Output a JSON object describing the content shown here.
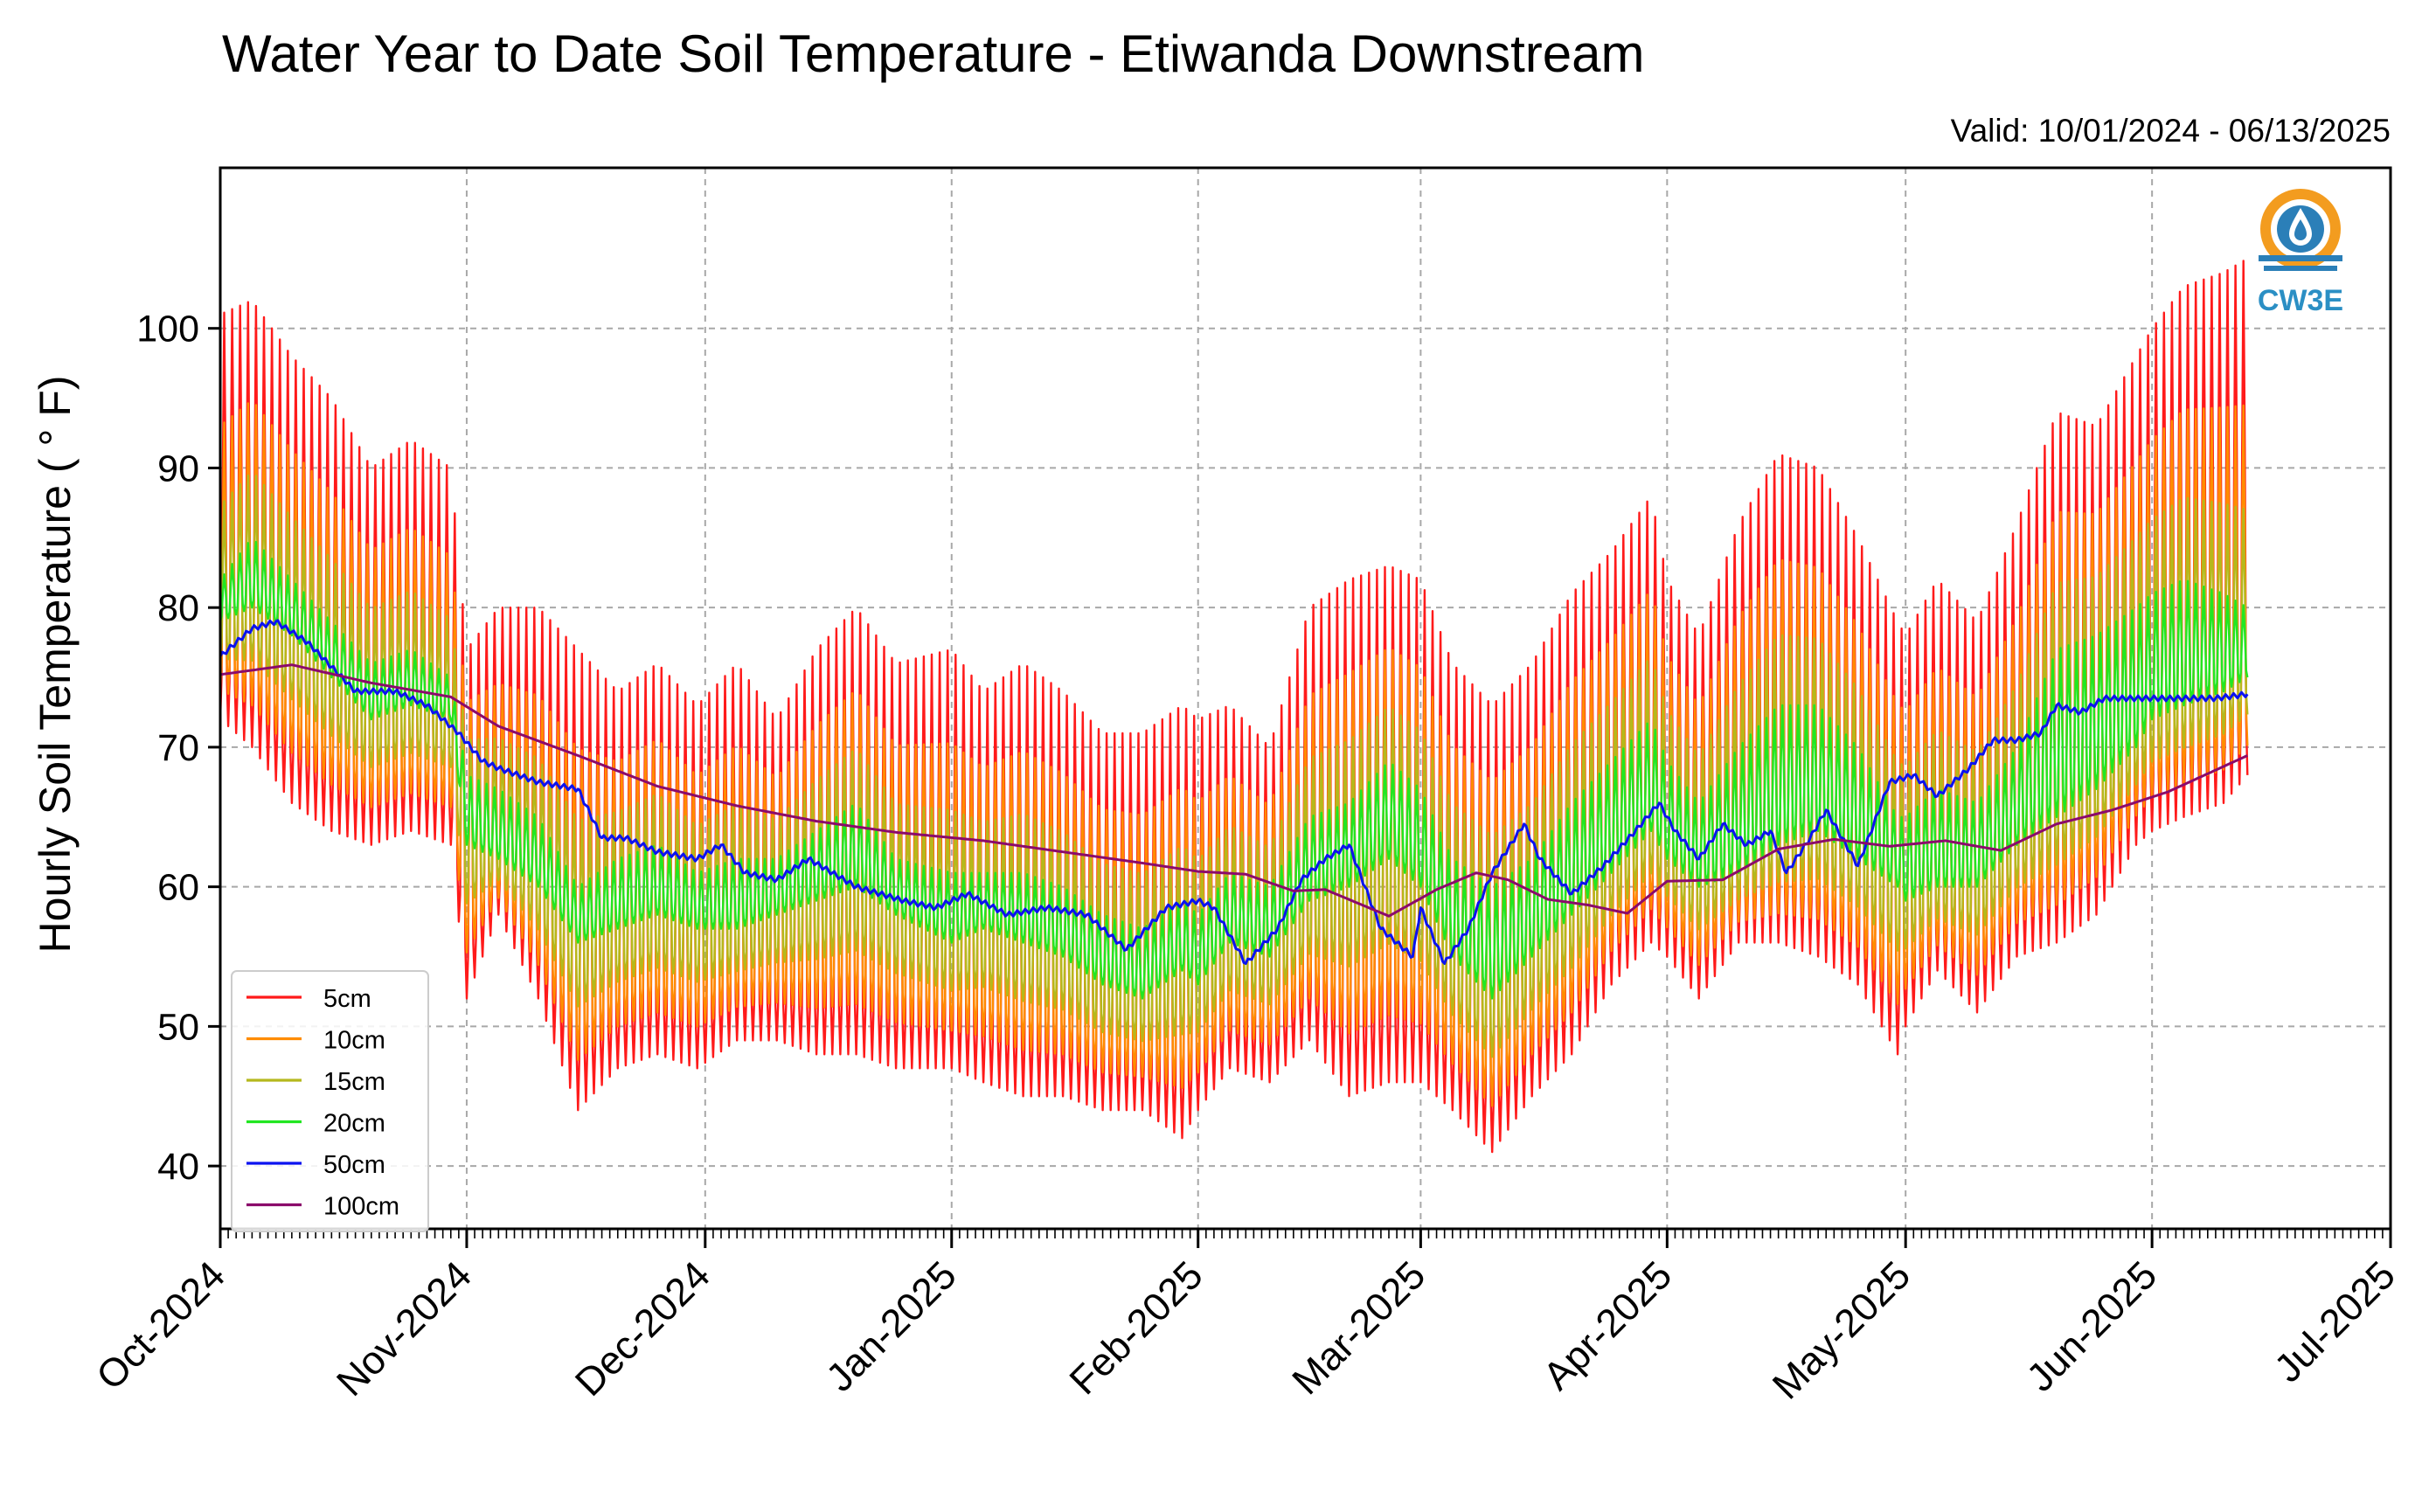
{
  "chart_data": {
    "type": "line",
    "title": "Water Year to Date Soil Temperature - Etiwanda Downstream",
    "subtitle": "Valid: 10/01/2024 - 06/13/2025",
    "ylabel": "Hourly Soil Temperature ( ° F)",
    "xlabel": "",
    "xlim": [
      "2024-10-01",
      "2025-07-01"
    ],
    "ylim": [
      35.5,
      111.5
    ],
    "yticks": [
      40,
      50,
      60,
      70,
      80,
      90,
      100
    ],
    "xticks": [
      {
        "date": "2024-10-01",
        "label": "Oct-2024"
      },
      {
        "date": "2024-11-01",
        "label": "Nov-2024"
      },
      {
        "date": "2024-12-01",
        "label": "Dec-2024"
      },
      {
        "date": "2025-01-01",
        "label": "Jan-2025"
      },
      {
        "date": "2025-02-01",
        "label": "Feb-2025"
      },
      {
        "date": "2025-03-01",
        "label": "Mar-2025"
      },
      {
        "date": "2025-04-01",
        "label": "Apr-2025"
      },
      {
        "date": "2025-05-01",
        "label": "May-2025"
      },
      {
        "date": "2025-06-01",
        "label": "Jun-2025"
      },
      {
        "date": "2025-07-01",
        "label": "Jul-2025"
      }
    ],
    "grid": true,
    "legend_position": "lower-left",
    "logo_text": "CW3E",
    "data_end": "2025-06-13",
    "shallow_envelope": {
      "dates": [
        "2024-10-01",
        "2024-10-05",
        "2024-10-10",
        "2024-10-15",
        "2024-10-20",
        "2024-10-25",
        "2024-10-30",
        "2024-11-01",
        "2024-11-05",
        "2024-11-10",
        "2024-11-15",
        "2024-11-20",
        "2024-11-25",
        "2024-11-30",
        "2024-12-05",
        "2024-12-10",
        "2024-12-15",
        "2024-12-20",
        "2024-12-25",
        "2025-01-01",
        "2025-01-05",
        "2025-01-10",
        "2025-01-15",
        "2025-01-20",
        "2025-01-25",
        "2025-01-30",
        "2025-02-01",
        "2025-02-05",
        "2025-02-10",
        "2025-02-15",
        "2025-02-20",
        "2025-02-25",
        "2025-03-01",
        "2025-03-05",
        "2025-03-10",
        "2025-03-15",
        "2025-03-20",
        "2025-03-25",
        "2025-03-30",
        "2025-04-01",
        "2025-04-05",
        "2025-04-10",
        "2025-04-15",
        "2025-04-20",
        "2025-04-25",
        "2025-04-30",
        "2025-05-01",
        "2025-05-05",
        "2025-05-10",
        "2025-05-15",
        "2025-05-20",
        "2025-05-25",
        "2025-05-30",
        "2025-06-01",
        "2025-06-05",
        "2025-06-10",
        "2025-06-13"
      ],
      "max_5cm": [
        101,
        102,
        98,
        95,
        90,
        92,
        90,
        77,
        80,
        80,
        77,
        74,
        76,
        73,
        76,
        72,
        77,
        80,
        76,
        77,
        74,
        76,
        74,
        71,
        71,
        73,
        72,
        73,
        70,
        80,
        82,
        83,
        82,
        76,
        73,
        76,
        81,
        84,
        88,
        82,
        78,
        86,
        91,
        90,
        85,
        79,
        78,
        82,
        79,
        86,
        94,
        93,
        98,
        100,
        103,
        104,
        105
      ],
      "min_5cm": [
        72,
        70,
        66,
        64,
        63,
        64,
        63,
        52,
        58,
        52,
        44,
        47,
        48,
        47,
        49,
        49,
        48,
        48,
        47,
        47,
        46,
        45,
        45,
        44,
        44,
        42,
        44,
        47,
        46,
        49,
        45,
        46,
        46,
        44,
        41,
        45,
        48,
        53,
        56,
        55,
        52,
        56,
        56,
        55,
        53,
        48,
        50,
        54,
        51,
        55,
        56,
        58,
        63,
        64,
        65,
        66,
        68
      ],
      "max_20cm": [
        82,
        85,
        82,
        79,
        76,
        77,
        75,
        68,
        67,
        65,
        60,
        62,
        63,
        61,
        62,
        62,
        64,
        66,
        62,
        61,
        61,
        61,
        60,
        58,
        57,
        59,
        58,
        61,
        60,
        65,
        66,
        69,
        67,
        62,
        60,
        62,
        66,
        69,
        72,
        69,
        66,
        70,
        73,
        73,
        70,
        65,
        65,
        67,
        66,
        70,
        77,
        78,
        80,
        81,
        82,
        81,
        80
      ],
      "min_20cm": [
        79,
        80,
        78,
        75,
        72,
        73,
        72,
        63,
        62,
        60,
        56,
        57,
        58,
        57,
        57,
        58,
        59,
        60,
        58,
        56,
        57,
        56,
        55,
        53,
        52,
        54,
        53,
        56,
        55,
        59,
        60,
        62,
        60,
        55,
        52,
        55,
        58,
        61,
        64,
        62,
        60,
        61,
        63,
        64,
        62,
        60,
        59,
        60,
        60,
        63,
        65,
        67,
        70,
        72,
        73,
        74,
        75
      ]
    },
    "series": [
      {
        "name": "5cm",
        "color": "#ff1a1a",
        "values": "oscillation between shallow_envelope.min_5cm and shallow_envelope.max_5cm"
      },
      {
        "name": "10cm",
        "color": "#ff8c00",
        "values": "oscillation between shallow envelopes"
      },
      {
        "name": "15cm",
        "color": "#b5b81d",
        "values": "oscillation between shallow envelopes"
      },
      {
        "name": "20cm",
        "color": "#22e622",
        "values": "oscillation between shallow_envelope.min_20cm and shallow_envelope.max_20cm"
      },
      {
        "name": "50cm",
        "color": "#0b12f0",
        "x": [
          "2024-10-01",
          "2024-10-05",
          "2024-10-08",
          "2024-10-12",
          "2024-10-18",
          "2024-10-23",
          "2024-10-27",
          "2024-10-31",
          "2024-11-03",
          "2024-11-05",
          "2024-11-10",
          "2024-11-15",
          "2024-11-18",
          "2024-11-21",
          "2024-11-25",
          "2024-11-30",
          "2024-12-03",
          "2024-12-06",
          "2024-12-10",
          "2024-12-14",
          "2024-12-20",
          "2024-12-23",
          "2024-12-26",
          "2024-12-30",
          "2025-01-03",
          "2025-01-08",
          "2025-01-13",
          "2025-01-18",
          "2025-01-23",
          "2025-01-28",
          "2025-02-01",
          "2025-02-03",
          "2025-02-07",
          "2025-02-11",
          "2025-02-14",
          "2025-02-17",
          "2025-02-20",
          "2025-02-24",
          "2025-02-28",
          "2025-03-01",
          "2025-03-04",
          "2025-03-07",
          "2025-03-10",
          "2025-03-14",
          "2025-03-16",
          "2025-03-20",
          "2025-03-24",
          "2025-03-28",
          "2025-03-31",
          "2025-04-02",
          "2025-04-05",
          "2025-04-08",
          "2025-04-11",
          "2025-04-14",
          "2025-04-16",
          "2025-04-19",
          "2025-04-21",
          "2025-04-25",
          "2025-04-29",
          "2025-05-02",
          "2025-05-05",
          "2025-05-09",
          "2025-05-12",
          "2025-05-15",
          "2025-05-18",
          "2025-05-20",
          "2025-05-23",
          "2025-05-26",
          "2025-05-29",
          "2025-06-01",
          "2025-06-03",
          "2025-06-06",
          "2025-06-09",
          "2025-06-13"
        ],
        "y": [
          76.5,
          78.5,
          79,
          77.5,
          74,
          74,
          73,
          71,
          69,
          68.5,
          67.5,
          67,
          63.5,
          63.5,
          62.5,
          62,
          63,
          61,
          60.5,
          62,
          60,
          59.5,
          59,
          58.5,
          59.5,
          58,
          58.5,
          58,
          55.5,
          58.5,
          59,
          58.5,
          54.5,
          57,
          60.5,
          62,
          63,
          57,
          55,
          58.5,
          54.5,
          57,
          61,
          64.5,
          62,
          59.5,
          61.5,
          64,
          66,
          64,
          62,
          64.5,
          63,
          64,
          61,
          63.5,
          65.5,
          61.5,
          67.5,
          68,
          66.5,
          68.5,
          70.5,
          70.5,
          71,
          73,
          72.5,
          73.5,
          73.5,
          73.5,
          73.5,
          73.5,
          73.5,
          73.8
        ]
      },
      {
        "name": "100cm",
        "color": "#8b0a6b",
        "x": [
          "2024-10-01",
          "2024-10-10",
          "2024-10-20",
          "2024-10-30",
          "2024-11-05",
          "2024-11-15",
          "2024-11-25",
          "2024-12-05",
          "2024-12-15",
          "2024-12-25",
          "2025-01-05",
          "2025-01-15",
          "2025-01-25",
          "2025-02-01",
          "2025-02-07",
          "2025-02-13",
          "2025-02-17",
          "2025-02-25",
          "2025-03-03",
          "2025-03-08",
          "2025-03-12",
          "2025-03-17",
          "2025-03-22",
          "2025-03-27",
          "2025-04-01",
          "2025-04-08",
          "2025-04-15",
          "2025-04-22",
          "2025-04-29",
          "2025-05-06",
          "2025-05-13",
          "2025-05-20",
          "2025-05-27",
          "2025-06-03",
          "2025-06-08",
          "2025-06-13"
        ],
        "y": [
          75.2,
          75.9,
          74.6,
          73.6,
          71.5,
          69.4,
          67.2,
          65.8,
          64.7,
          63.9,
          63.3,
          62.5,
          61.7,
          61.1,
          60.9,
          59.7,
          59.8,
          57.9,
          59.8,
          61,
          60.5,
          59.1,
          58.7,
          58.1,
          60.4,
          60.5,
          62.7,
          63.4,
          62.9,
          63.3,
          62.6,
          64.5,
          65.5,
          66.8,
          68.1,
          69.4
        ]
      }
    ]
  }
}
